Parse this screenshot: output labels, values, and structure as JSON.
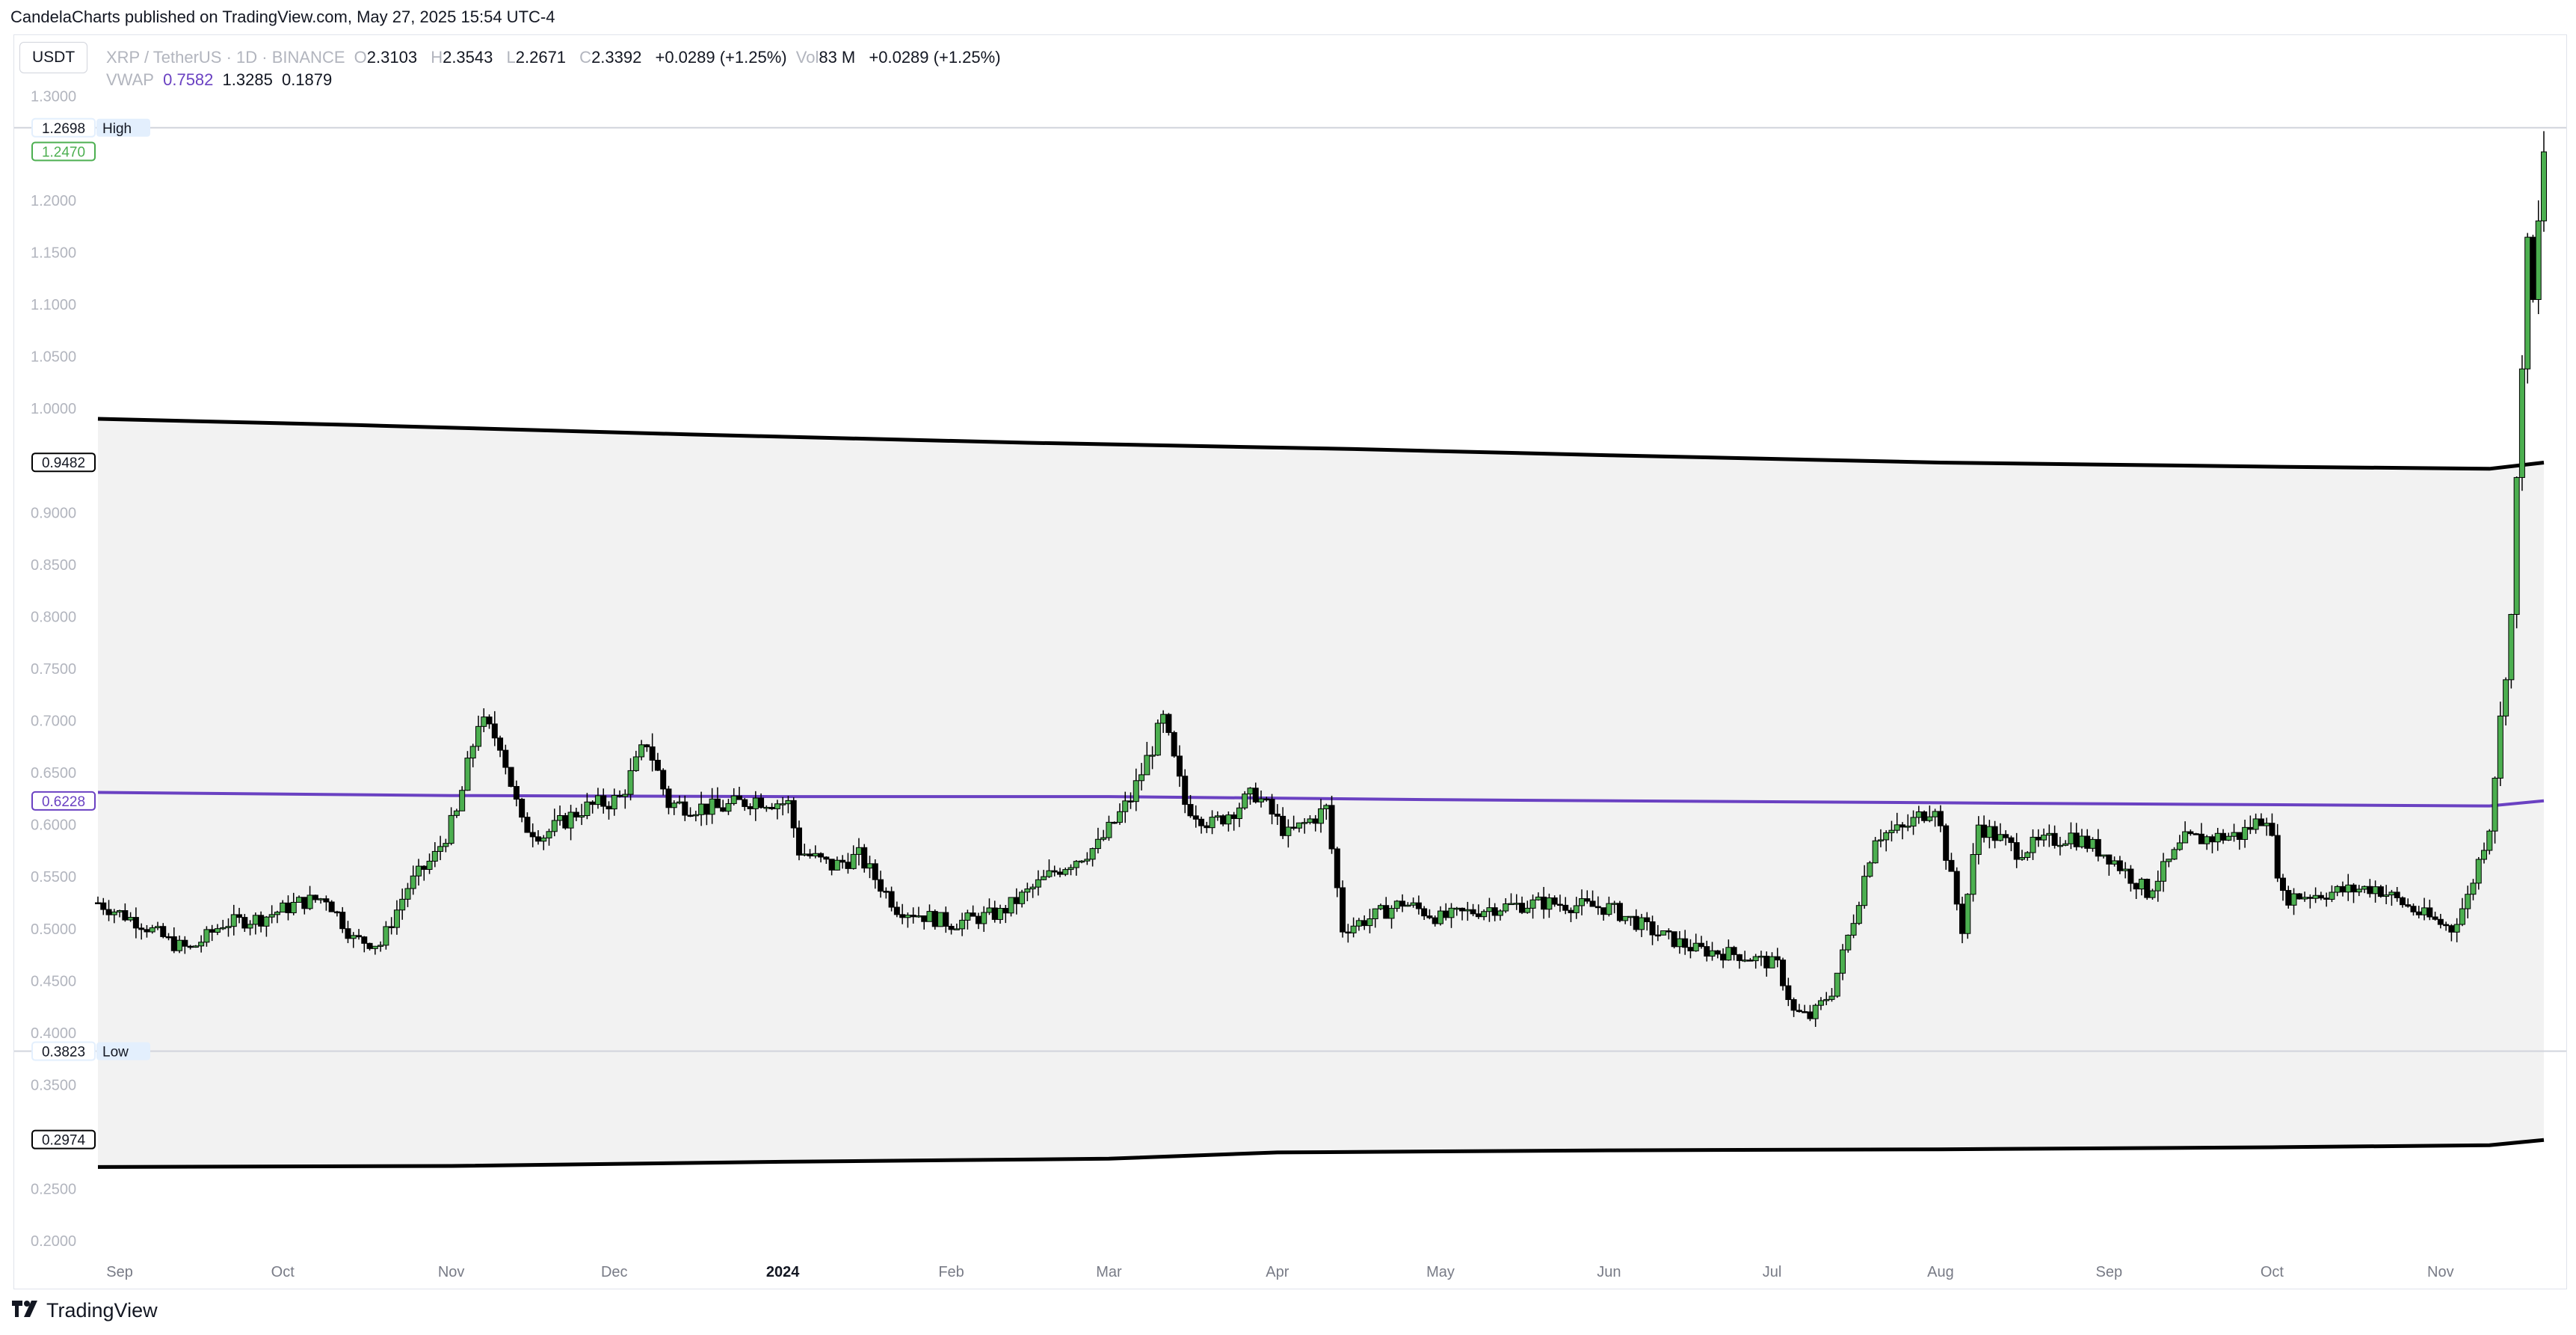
{
  "header": {
    "credit": "CandelaCharts published on TradingView.com, May 27, 2025 15:54 UTC-4"
  },
  "symbol_box": "USDT",
  "legend": {
    "pair": "XRP / TetherUS · 1D · BINANCE",
    "o_label": "O",
    "o_value": "2.3103",
    "h_label": "H",
    "h_value": "2.3543",
    "l_label": "L",
    "l_value": "2.2671",
    "c_label": "C",
    "c_value": "2.3392",
    "change": "+0.0289 (+1.25%)",
    "vol_label": "Vol",
    "vol_value": "83 M",
    "vol_change": "+0.0289 (+1.25%)",
    "vwap_label": "VWAP",
    "vwap_v1": "0.7582",
    "vwap_v2": "1.3285",
    "vwap_v3": "0.1879"
  },
  "footer": {
    "brand": "TradingView"
  },
  "colors": {
    "up_candle": "#4caf50",
    "down_candle": "#000000",
    "vwap": "#6a41c2",
    "band": "#000000",
    "shade": "#f2f2f2",
    "accent_green": "#4caf50"
  },
  "chart_data": {
    "type": "candlestick",
    "ylim": [
      0.18,
      1.33
    ],
    "y_ticks": [
      "1.3000",
      "1.2000",
      "1.1500",
      "1.1000",
      "1.0500",
      "1.0000",
      "0.9000",
      "0.8500",
      "0.8000",
      "0.7500",
      "0.7000",
      "0.6500",
      "0.6000",
      "0.5500",
      "0.5000",
      "0.4500",
      "0.4000",
      "0.3500",
      "0.2500",
      "0.2000"
    ],
    "x_labels": [
      {
        "label": "Sep",
        "date": "2023-09-01"
      },
      {
        "label": "Oct",
        "date": "2023-10-01"
      },
      {
        "label": "Nov",
        "date": "2023-11-01"
      },
      {
        "label": "Dec",
        "date": "2023-12-01"
      },
      {
        "label": "2024",
        "date": "2024-01-01",
        "bold": true
      },
      {
        "label": "Feb",
        "date": "2024-02-01"
      },
      {
        "label": "Mar",
        "date": "2024-03-01"
      },
      {
        "label": "Apr",
        "date": "2024-04-01"
      },
      {
        "label": "May",
        "date": "2024-05-01"
      },
      {
        "label": "Jun",
        "date": "2024-06-01"
      },
      {
        "label": "Jul",
        "date": "2024-07-01"
      },
      {
        "label": "Aug",
        "date": "2024-08-01"
      },
      {
        "label": "Sep",
        "date": "2024-09-01"
      },
      {
        "label": "Oct",
        "date": "2024-10-01"
      },
      {
        "label": "Nov",
        "date": "2024-11-01"
      }
    ],
    "x_range": [
      "2023-08-28",
      "2024-11-20"
    ],
    "range_high": {
      "value": 1.2698,
      "label": "1.2698",
      "tag": "High"
    },
    "range_low": {
      "value": 0.3823,
      "label": "0.3823",
      "tag": "Low"
    },
    "last_price": {
      "value": 1.247,
      "label": "1.2470"
    },
    "upper_band": {
      "label": "0.9482",
      "last": 0.9482,
      "points": [
        [
          "2023-08-28",
          0.99
        ],
        [
          "2023-10-15",
          0.984
        ],
        [
          "2023-12-15",
          0.975
        ],
        [
          "2024-02-15",
          0.967
        ],
        [
          "2024-04-15",
          0.961
        ],
        [
          "2024-06-01",
          0.955
        ],
        [
          "2024-08-01",
          0.948
        ],
        [
          "2024-10-01",
          0.944
        ],
        [
          "2024-11-10",
          0.942
        ],
        [
          "2024-11-20",
          0.948
        ]
      ]
    },
    "lower_band": {
      "label": "0.2974",
      "last": 0.2974,
      "points": [
        [
          "2023-08-28",
          0.271
        ],
        [
          "2023-11-01",
          0.272
        ],
        [
          "2024-01-01",
          0.276
        ],
        [
          "2024-03-01",
          0.279
        ],
        [
          "2024-04-01",
          0.285
        ],
        [
          "2024-06-01",
          0.287
        ],
        [
          "2024-08-01",
          0.288
        ],
        [
          "2024-10-01",
          0.29
        ],
        [
          "2024-11-10",
          0.292
        ],
        [
          "2024-11-20",
          0.297
        ]
      ]
    },
    "vwap": {
      "label": "0.6228",
      "last": 0.6228,
      "points": [
        [
          "2023-08-28",
          0.631
        ],
        [
          "2023-11-01",
          0.628
        ],
        [
          "2024-01-01",
          0.627
        ],
        [
          "2024-03-01",
          0.627
        ],
        [
          "2024-05-01",
          0.624
        ],
        [
          "2024-07-01",
          0.622
        ],
        [
          "2024-09-01",
          0.62
        ],
        [
          "2024-11-10",
          0.618
        ],
        [
          "2024-11-20",
          0.623
        ]
      ]
    },
    "price_path": [
      [
        "2023-08-28",
        0.525
      ],
      [
        "2023-09-01",
        0.515
      ],
      [
        "2023-09-05",
        0.505
      ],
      [
        "2023-09-11",
        0.485
      ],
      [
        "2023-09-14",
        0.48
      ],
      [
        "2023-09-20",
        0.505
      ],
      [
        "2023-09-27",
        0.51
      ],
      [
        "2023-10-04",
        0.525
      ],
      [
        "2023-10-09",
        0.53
      ],
      [
        "2023-10-14",
        0.49
      ],
      [
        "2023-10-19",
        0.485
      ],
      [
        "2023-10-24",
        0.54
      ],
      [
        "2023-10-29",
        0.57
      ],
      [
        "2023-11-02",
        0.61
      ],
      [
        "2023-11-06",
        0.7
      ],
      [
        "2023-11-10",
        0.68
      ],
      [
        "2023-11-14",
        0.6
      ],
      [
        "2023-11-18",
        0.59
      ],
      [
        "2023-11-25",
        0.615
      ],
      [
        "2023-12-02",
        0.625
      ],
      [
        "2023-12-07",
        0.68
      ],
      [
        "2023-12-11",
        0.62
      ],
      [
        "2023-12-20",
        0.615
      ],
      [
        "2023-12-27",
        0.625
      ],
      [
        "2024-01-02",
        0.62
      ],
      [
        "2024-01-04",
        0.575
      ],
      [
        "2024-01-10",
        0.56
      ],
      [
        "2024-01-15",
        0.57
      ],
      [
        "2024-01-22",
        0.52
      ],
      [
        "2024-02-01",
        0.505
      ],
      [
        "2024-02-10",
        0.515
      ],
      [
        "2024-02-20",
        0.555
      ],
      [
        "2024-02-28",
        0.58
      ],
      [
        "2024-03-05",
        0.625
      ],
      [
        "2024-03-11",
        0.7
      ],
      [
        "2024-03-15",
        0.62
      ],
      [
        "2024-03-20",
        0.6
      ],
      [
        "2024-03-28",
        0.63
      ],
      [
        "2024-04-03",
        0.59
      ],
      [
        "2024-04-10",
        0.615
      ],
      [
        "2024-04-13",
        0.5
      ],
      [
        "2024-04-18",
        0.51
      ],
      [
        "2024-04-24",
        0.525
      ],
      [
        "2024-05-01",
        0.51
      ],
      [
        "2024-05-10",
        0.52
      ],
      [
        "2024-05-20",
        0.525
      ],
      [
        "2024-06-01",
        0.52
      ],
      [
        "2024-06-10",
        0.495
      ],
      [
        "2024-06-17",
        0.48
      ],
      [
        "2024-06-25",
        0.475
      ],
      [
        "2024-07-02",
        0.465
      ],
      [
        "2024-07-05",
        0.42
      ],
      [
        "2024-07-08",
        0.415
      ],
      [
        "2024-07-12",
        0.44
      ],
      [
        "2024-07-16",
        0.51
      ],
      [
        "2024-07-20",
        0.59
      ],
      [
        "2024-07-25",
        0.595
      ],
      [
        "2024-07-31",
        0.62
      ],
      [
        "2024-08-05",
        0.5
      ],
      [
        "2024-08-08",
        0.6
      ],
      [
        "2024-08-15",
        0.575
      ],
      [
        "2024-08-25",
        0.59
      ],
      [
        "2024-09-01",
        0.57
      ],
      [
        "2024-09-08",
        0.535
      ],
      [
        "2024-09-15",
        0.585
      ],
      [
        "2024-09-25",
        0.59
      ],
      [
        "2024-09-30",
        0.61
      ],
      [
        "2024-10-03",
        0.53
      ],
      [
        "2024-10-12",
        0.535
      ],
      [
        "2024-10-20",
        0.54
      ],
      [
        "2024-10-28",
        0.515
      ],
      [
        "2024-11-03",
        0.5
      ],
      [
        "2024-11-06",
        0.53
      ],
      [
        "2024-11-10",
        0.6
      ],
      [
        "2024-11-12",
        0.7
      ],
      [
        "2024-11-14",
        0.8
      ],
      [
        "2024-11-16",
        1.05
      ],
      [
        "2024-11-17",
        1.15
      ],
      [
        "2024-11-18",
        1.1
      ],
      [
        "2024-11-20",
        1.247
      ]
    ]
  }
}
